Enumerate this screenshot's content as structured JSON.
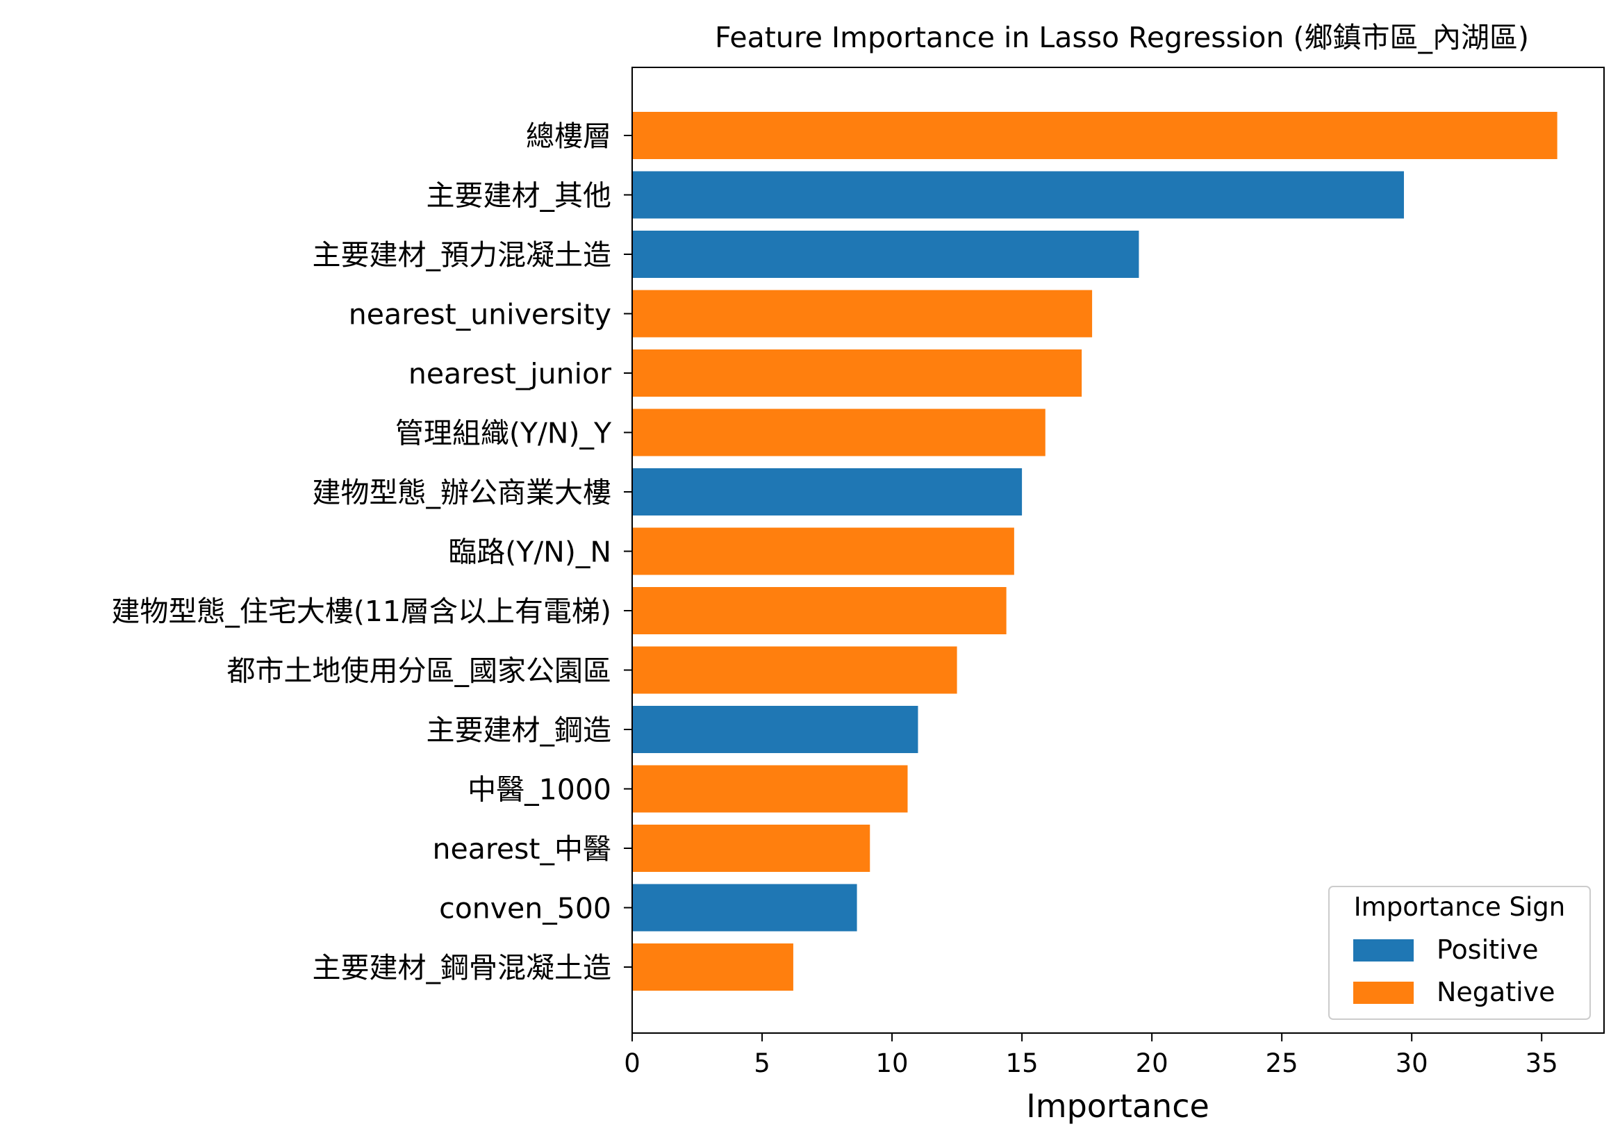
{
  "chart_data": {
    "type": "bar",
    "orientation": "horizontal",
    "title": "Feature Importance in Lasso Regression (鄉鎮市區_內湖區)",
    "xlabel": "Importance",
    "ylabel": "",
    "xlim": [
      0,
      37.4
    ],
    "xticks": [
      0,
      5,
      10,
      15,
      20,
      25,
      30,
      35
    ],
    "grid": false,
    "legend": {
      "title": "Importance Sign",
      "placement": "lower-right",
      "entries": [
        {
          "label": "Positive",
          "color": "#1f77b4"
        },
        {
          "label": "Negative",
          "color": "#ff7f0e"
        }
      ]
    },
    "colors": {
      "Positive": "#1f77b4",
      "Negative": "#ff7f0e"
    },
    "bars": [
      {
        "label": "總樓層",
        "value": 35.6,
        "sign": "Negative"
      },
      {
        "label": "主要建材_其他",
        "value": 29.7,
        "sign": "Positive"
      },
      {
        "label": "主要建材_預力混凝土造",
        "value": 19.5,
        "sign": "Positive"
      },
      {
        "label": "nearest_university",
        "value": 17.7,
        "sign": "Negative"
      },
      {
        "label": "nearest_junior",
        "value": 17.3,
        "sign": "Negative"
      },
      {
        "label": "管理組織(Y/N)_Y",
        "value": 15.9,
        "sign": "Negative"
      },
      {
        "label": "建物型態_辦公商業大樓",
        "value": 15.0,
        "sign": "Positive"
      },
      {
        "label": "臨路(Y/N)_N",
        "value": 14.7,
        "sign": "Negative"
      },
      {
        "label": "建物型態_住宅大樓(11層含以上有電梯)",
        "value": 14.4,
        "sign": "Negative"
      },
      {
        "label": "都市土地使用分區_國家公園區",
        "value": 12.5,
        "sign": "Negative"
      },
      {
        "label": "主要建材_鋼造",
        "value": 11.0,
        "sign": "Positive"
      },
      {
        "label": "中醫_1000",
        "value": 10.6,
        "sign": "Negative"
      },
      {
        "label": "nearest_中醫",
        "value": 9.15,
        "sign": "Negative"
      },
      {
        "label": "conven_500",
        "value": 8.65,
        "sign": "Positive"
      },
      {
        "label": "主要建材_鋼骨混凝土造",
        "value": 6.2,
        "sign": "Negative"
      }
    ]
  }
}
